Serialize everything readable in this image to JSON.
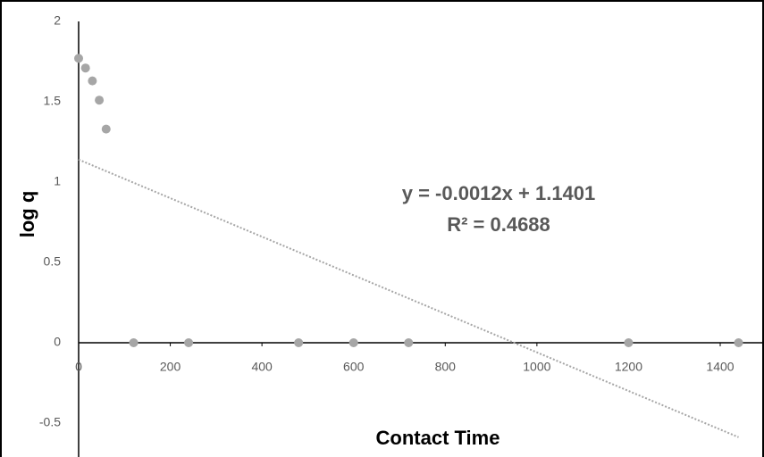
{
  "chart_data": {
    "type": "scatter",
    "x_label": "Contact Time",
    "y_label": "log q",
    "x": [
      0,
      15,
      30,
      45,
      60,
      120,
      240,
      480,
      600,
      720,
      1200,
      1440
    ],
    "series": [
      {
        "color": "#a6a6a6",
        "values": [
          1.77,
          1.71,
          1.63,
          1.51,
          1.33,
          0,
          0,
          0,
          0,
          0,
          0,
          0
        ]
      }
    ],
    "trendline": {
      "slope": -0.0012,
      "intercept": 1.1401,
      "color": "#a6a6a6",
      "equation": "y = -0.0012x + 1.1401",
      "r_squared": "R² = 0.4688"
    },
    "xlim": [
      0,
      1400
    ],
    "xticks": [
      0,
      200,
      400,
      600,
      800,
      1000,
      1200,
      1400
    ],
    "ylim": [
      -0.5,
      2
    ],
    "yticks": [
      -0.5,
      0,
      0.5,
      1,
      1.5,
      2
    ],
    "grid": false
  }
}
